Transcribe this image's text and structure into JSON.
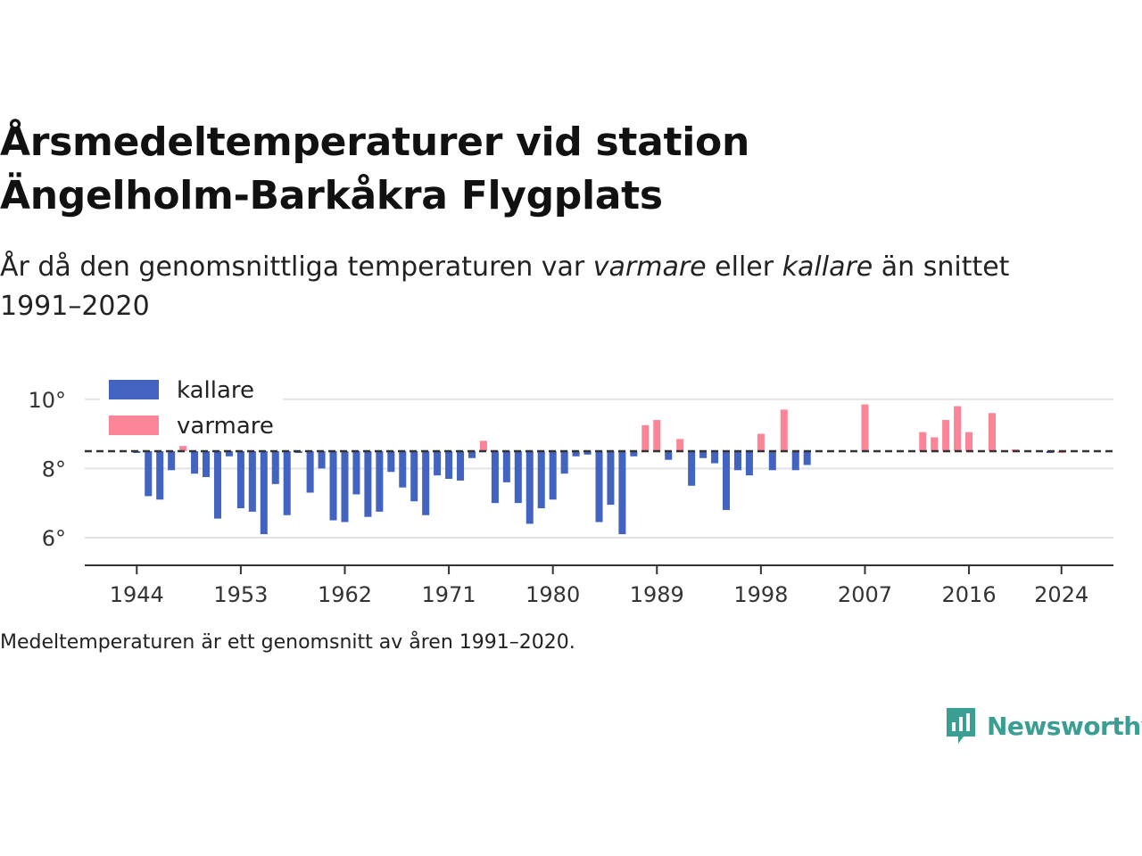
{
  "title_line1": "Årsmedeltemperaturer vid station",
  "title_line2": "Ängelholm-Barkåkra Flygplats",
  "subtitle": {
    "part1": "År då den genomsnittliga temperaturen var ",
    "warm": "varmare",
    "part2": " eller ",
    "cold": "kallare",
    "part3": " än snittet 1991–2020"
  },
  "note": "Medeltemperaturen är ett genomsnitt av åren 1991–2020.",
  "brand": "Newsworthy",
  "colors": {
    "cold": "#4263c0",
    "warm": "#fb8497",
    "baseline": "#333333",
    "grid": "#e3e3e3",
    "brand": "#3a9e92"
  },
  "chart_data": {
    "type": "bar",
    "baseline": 8.5,
    "ylim": [
      5.2,
      10.2
    ],
    "yticks": [
      6,
      8,
      10
    ],
    "ytick_labels": [
      "6°",
      "8°",
      "10°"
    ],
    "xticks": [
      1944,
      1953,
      1962,
      1971,
      1980,
      1989,
      1998,
      2007,
      2016,
      2024
    ],
    "xlim": [
      1939.5,
      2028.5
    ],
    "legend": {
      "position": "top-left",
      "items": [
        {
          "key": "cold",
          "label": "kallare"
        },
        {
          "key": "warm",
          "label": "varmare"
        }
      ]
    },
    "x": [
      1944,
      1945,
      1946,
      1947,
      1948,
      1949,
      1950,
      1951,
      1952,
      1953,
      1954,
      1955,
      1956,
      1957,
      1958,
      1959,
      1960,
      1961,
      1962,
      1963,
      1964,
      1965,
      1966,
      1967,
      1968,
      1969,
      1970,
      1971,
      1972,
      1973,
      1974,
      1975,
      1976,
      1977,
      1978,
      1979,
      1980,
      1981,
      1982,
      1983,
      1984,
      1985,
      1986,
      1987,
      1988,
      1989,
      1990,
      1991,
      1992,
      1993,
      1994,
      1995,
      1996,
      1997,
      1998,
      1999,
      2000,
      2001,
      2002,
      2007,
      2012,
      2013,
      2014,
      2015,
      2016,
      2018,
      2020,
      2023,
      2024
    ],
    "values": [
      8.47,
      7.2,
      7.1,
      7.95,
      8.65,
      7.85,
      7.75,
      6.55,
      8.35,
      6.85,
      6.75,
      6.1,
      7.55,
      6.65,
      8.45,
      7.3,
      8.0,
      6.5,
      6.45,
      7.25,
      6.6,
      6.75,
      7.9,
      7.45,
      7.05,
      6.65,
      7.8,
      7.7,
      7.65,
      8.3,
      8.8,
      7.0,
      7.6,
      7.0,
      6.4,
      6.85,
      7.1,
      7.85,
      8.35,
      8.4,
      6.45,
      6.95,
      6.1,
      8.35,
      9.25,
      9.4,
      8.25,
      8.85,
      7.5,
      8.3,
      8.15,
      6.8,
      7.95,
      7.8,
      9.0,
      7.95,
      9.7,
      7.95,
      8.1,
      9.85,
      9.05,
      8.9,
      9.4,
      9.8,
      9.05,
      9.6,
      8.55,
      8.45,
      8.5
    ]
  }
}
